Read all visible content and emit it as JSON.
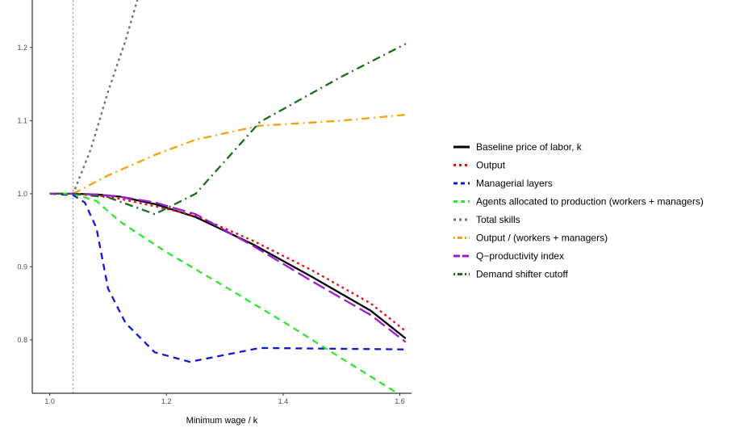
{
  "chart_data": {
    "type": "line",
    "title": "",
    "xlabel": "Minimum wage / k",
    "ylabel": "",
    "xlim": [
      0.97,
      1.62
    ],
    "ylim": [
      0.727,
      1.265
    ],
    "x_ticks": [
      1.0,
      1.2,
      1.4,
      1.6
    ],
    "x_tick_labels": [
      "1.0",
      "1.2",
      "1.4",
      "1.6"
    ],
    "y_ticks": [
      0.8,
      0.9,
      1.0,
      1.1,
      1.2
    ],
    "y_tick_labels": [
      "0.8",
      "0.9",
      "1.0",
      "1.1",
      "1.2"
    ],
    "vline_x": 1.04,
    "grid": false,
    "legend_position": "right",
    "series": [
      {
        "name": "Baseline price of labor, k",
        "color": "#000000",
        "dash": "solid",
        "x": [
          1.0,
          1.04,
          1.08,
          1.12,
          1.18,
          1.25,
          1.35,
          1.45,
          1.55,
          1.61
        ],
        "y": [
          1.0,
          1.0,
          0.999,
          0.996,
          0.986,
          0.968,
          0.93,
          0.886,
          0.84,
          0.802
        ]
      },
      {
        "name": "Output",
        "color": "#e8100f",
        "dash": "dotted",
        "x": [
          1.0,
          1.04,
          1.08,
          1.12,
          1.18,
          1.25,
          1.35,
          1.45,
          1.55,
          1.61
        ],
        "y": [
          1.0,
          1.0,
          0.998,
          0.993,
          0.983,
          0.97,
          0.935,
          0.895,
          0.85,
          0.812
        ]
      },
      {
        "name": "Managerial layers",
        "color": "#1414d6",
        "dash": "dashed",
        "x": [
          1.0,
          1.04,
          1.06,
          1.08,
          1.1,
          1.13,
          1.18,
          1.24,
          1.36,
          1.61
        ],
        "y": [
          1.0,
          0.998,
          0.988,
          0.953,
          0.87,
          0.823,
          0.783,
          0.77,
          0.789,
          0.787
        ]
      },
      {
        "name": "Agents allocated to production (workers + managers)",
        "color": "#2ce82c",
        "dash": "dashed",
        "x": [
          1.0,
          1.04,
          1.08,
          1.12,
          1.2,
          1.3,
          1.4,
          1.5,
          1.6
        ],
        "y": [
          1.0,
          1.0,
          0.99,
          0.962,
          0.92,
          0.873,
          0.825,
          0.775,
          0.725
        ]
      },
      {
        "name": "Total skills",
        "color": "#707070",
        "dash": "dotted",
        "x": [
          1.0,
          1.04,
          1.07,
          1.1,
          1.13,
          1.15
        ],
        "y": [
          1.0,
          1.0,
          1.06,
          1.14,
          1.21,
          1.265
        ]
      },
      {
        "name": "Output / (workers + managers)",
        "color": "#f2a40f",
        "dash": "dotdash",
        "x": [
          1.0,
          1.04,
          1.1,
          1.18,
          1.25,
          1.36,
          1.5,
          1.61
        ],
        "y": [
          1.0,
          1.0,
          1.025,
          1.053,
          1.074,
          1.093,
          1.1,
          1.108
        ]
      },
      {
        "name": "Q−productivity index",
        "color": "#9b1bd6",
        "dash": "longdash",
        "x": [
          1.0,
          1.04,
          1.08,
          1.12,
          1.18,
          1.25,
          1.35,
          1.45,
          1.55,
          1.61
        ],
        "y": [
          1.0,
          1.0,
          0.999,
          0.996,
          0.988,
          0.972,
          0.928,
          0.88,
          0.834,
          0.797
        ]
      },
      {
        "name": "Demand shifter cutoff",
        "color": "#1a6b1a",
        "dash": "dotdash",
        "x": [
          1.0,
          1.04,
          1.1,
          1.18,
          1.25,
          1.36,
          1.5,
          1.61
        ],
        "y": [
          1.0,
          1.0,
          0.995,
          0.972,
          1.0,
          1.098,
          1.16,
          1.205
        ]
      }
    ]
  }
}
